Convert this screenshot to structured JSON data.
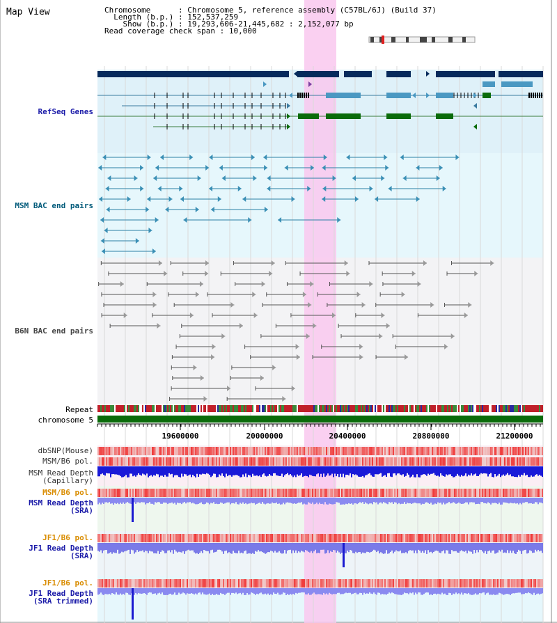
{
  "title": "Map View",
  "header": {
    "chromosome_label": "Chromosome",
    "chromosome_value": "Chromosome 5, reference assembly (C57BL/6J) (Build 37)",
    "length_label": "Length (b.p.)",
    "length_value": "152,537,259",
    "show_label": "Show (b.p.)",
    "show_value": "19,293,606-21,445,682 : 2,152,077 bp",
    "coverage_label": "Read coverage check span",
    "coverage_value": "10,000"
  },
  "tracks": {
    "refseq": "RefSeq Genes",
    "msm_bac": "MSM BAC end pairs",
    "b6n_bac": "B6N BAC end pairs",
    "repeat": "Repeat",
    "chromosome": "chromosome 5",
    "dbsnp": "dbSNP(Mouse)",
    "msm_b6_pol": "MSM/B6 pol.",
    "msm_depth_cap_1": "MSM Read Depth",
    "msm_depth_cap_2": "(Capillary)",
    "msm_b6_pol_2": "MSM/B6 pol.",
    "msm_depth_sra_1": "MSM Read Depth",
    "msm_depth_sra_2": "(SRA)",
    "jf1_b6_pol": "JF1/B6 pol.",
    "jf1_depth_sra_1": "JF1 Read Depth",
    "jf1_depth_sra_2": "(SRA)",
    "jf1_b6_pol_2": "JF1/B6 pol.",
    "jf1_depth_trim_1": "JF1 Read Depth",
    "jf1_depth_trim_2": "(SRA trimmed)"
  },
  "axis_ticks": [
    "19600000",
    "20000000",
    "20400000",
    "20800000",
    "21200000"
  ],
  "colors": {
    "refseq_bg": "#dff1f9",
    "bac_bg": "#e6f7fc",
    "highlight": "#f9c8ef",
    "gene_dark": "#062a5c",
    "gene_mid": "#4a98c2",
    "gene_green": "#0a6b0a",
    "label_blue": "#1a1aa8",
    "label_teal": "#005a7a",
    "label_orange": "#d98c00"
  }
}
